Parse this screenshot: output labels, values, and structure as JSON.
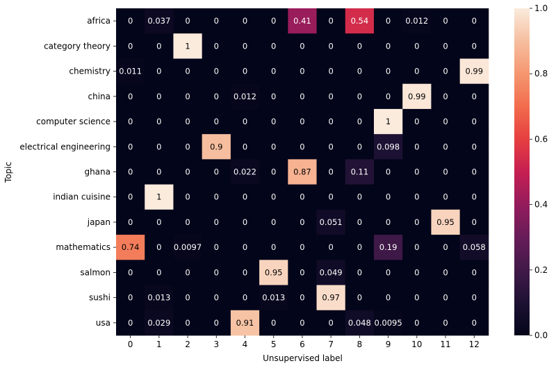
{
  "chart_data": {
    "type": "heatmap",
    "xlabel": "Unsupervised label",
    "ylabel": "Topic",
    "x": [
      "0",
      "1",
      "2",
      "3",
      "4",
      "5",
      "6",
      "7",
      "8",
      "9",
      "10",
      "11",
      "12"
    ],
    "y": [
      "africa",
      "category theory",
      "chemistry",
      "china",
      "computer science",
      "electrical engineering",
      "ghana",
      "indian cuisine",
      "japan",
      "mathematics",
      "salmon",
      "sushi",
      "usa"
    ],
    "values": [
      [
        "0",
        "0.037",
        "0",
        "0",
        "0",
        "0",
        "0.41",
        "0",
        "0.54",
        "0",
        "0.012",
        "0",
        "0"
      ],
      [
        "0",
        "0",
        "1",
        "0",
        "0",
        "0",
        "0",
        "0",
        "0",
        "0",
        "0",
        "0",
        "0"
      ],
      [
        "0.011",
        "0",
        "0",
        "0",
        "0",
        "0",
        "0",
        "0",
        "0",
        "0",
        "0",
        "0",
        "0.99"
      ],
      [
        "0",
        "0",
        "0",
        "0",
        "0.012",
        "0",
        "0",
        "0",
        "0",
        "0",
        "0.99",
        "0",
        "0"
      ],
      [
        "0",
        "0",
        "0",
        "0",
        "0",
        "0",
        "0",
        "0",
        "0",
        "1",
        "0",
        "0",
        "0"
      ],
      [
        "0",
        "0",
        "0",
        "0.9",
        "0",
        "0",
        "0",
        "0",
        "0",
        "0.098",
        "0",
        "0",
        "0"
      ],
      [
        "0",
        "0",
        "0",
        "0",
        "0.022",
        "0",
        "0.87",
        "0",
        "0.11",
        "0",
        "0",
        "0",
        "0"
      ],
      [
        "0",
        "1",
        "0",
        "0",
        "0",
        "0",
        "0",
        "0",
        "0",
        "0",
        "0",
        "0",
        "0"
      ],
      [
        "0",
        "0",
        "0",
        "0",
        "0",
        "0",
        "0",
        "0.051",
        "0",
        "0",
        "0",
        "0.95",
        "0"
      ],
      [
        "0.74",
        "0",
        "0.0097",
        "0",
        "0",
        "0",
        "0",
        "0",
        "0",
        "0.19",
        "0",
        "0",
        "0.058"
      ],
      [
        "0",
        "0",
        "0",
        "0",
        "0",
        "0.95",
        "0",
        "0.049",
        "0",
        "0",
        "0",
        "0",
        "0"
      ],
      [
        "0",
        "0.013",
        "0",
        "0",
        "0",
        "0.013",
        "0",
        "0.97",
        "0",
        "0",
        "0",
        "0",
        "0"
      ],
      [
        "0",
        "0.029",
        "0",
        "0",
        "0.91",
        "0",
        "0",
        "0",
        "0.048",
        "0.0095",
        "0",
        "0",
        "0"
      ]
    ],
    "colorbar": {
      "range": [
        0,
        1
      ],
      "ticks": [
        "0.0",
        "0.2",
        "0.4",
        "0.6",
        "0.8",
        "1.0"
      ]
    },
    "colormap": "rocket",
    "grid": false
  }
}
